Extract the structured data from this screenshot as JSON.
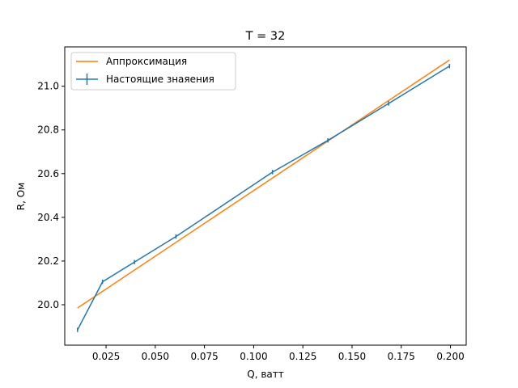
{
  "chart_data": {
    "type": "line",
    "title": "T = 32",
    "xlabel": "Q, ватт",
    "ylabel": "R, Ом",
    "xlim": [
      0.004,
      0.208
    ],
    "ylim": [
      19.815,
      21.18
    ],
    "xticks": [
      0.025,
      0.05,
      0.075,
      0.1,
      0.125,
      0.15,
      0.175,
      0.2
    ],
    "xtick_labels": [
      "0.025",
      "0.050",
      "0.075",
      "0.100",
      "0.125",
      "0.150",
      "0.175",
      "0.200"
    ],
    "yticks": [
      20.0,
      20.2,
      20.4,
      20.6,
      20.8,
      21.0
    ],
    "ytick_labels": [
      "20.0",
      "20.2",
      "20.4",
      "20.6",
      "20.8",
      "21.0"
    ],
    "grid": false,
    "legend_position": "top-left",
    "series": [
      {
        "name": "Аппроксимация",
        "color": "#ff7f0e",
        "kind": "line",
        "x": [
          0.0105,
          0.1995
        ],
        "y": [
          19.985,
          21.12
        ]
      },
      {
        "name": "Настоящие знаяения",
        "color": "#1f77b4",
        "kind": "errorbar",
        "x": [
          0.0105,
          0.0232,
          0.0394,
          0.0605,
          0.1096,
          0.1377,
          0.1686,
          0.1995
        ],
        "y": [
          19.885,
          20.105,
          20.195,
          20.312,
          20.607,
          20.752,
          20.921,
          21.092
        ],
        "yerr": [
          0.01,
          0.01,
          0.01,
          0.01,
          0.01,
          0.01,
          0.01,
          0.01
        ]
      }
    ]
  }
}
